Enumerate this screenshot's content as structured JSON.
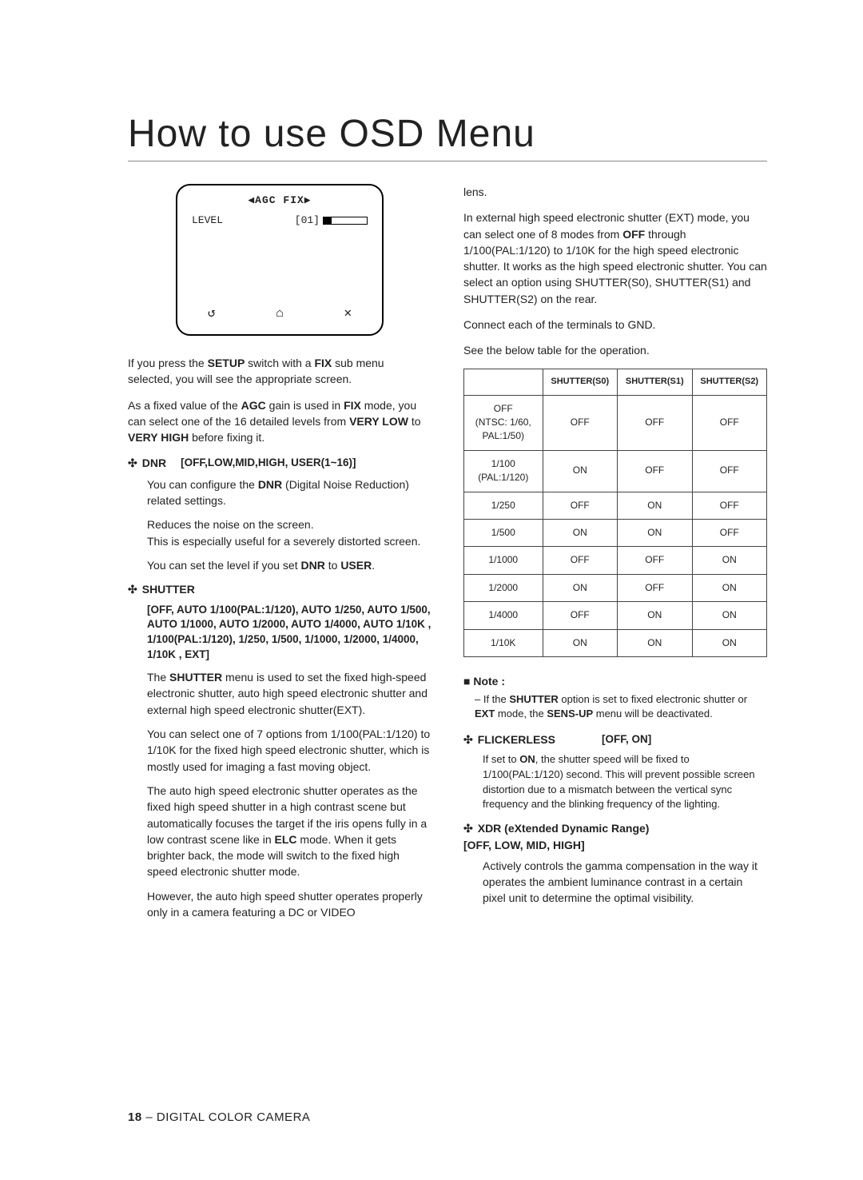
{
  "title": "How to use OSD Menu",
  "osd": {
    "header": "◀AGC FIX▶",
    "row_label": "LEVEL",
    "row_value": "[01]",
    "icon_back": "↺",
    "icon_home": "⌂",
    "icon_close": "✕"
  },
  "left": {
    "p1_a": "If you press the ",
    "p1_b": "SETUP",
    "p1_c": " switch with a ",
    "p1_d": "FIX",
    "p1_e": " sub menu selected, you will see the appropriate screen.",
    "p2_a": "As a fixed value of the ",
    "p2_b": "AGC",
    "p2_c": " gain is used in ",
    "p2_d": "FIX",
    "p2_e": " mode, you can select one of the 16 detailed levels from ",
    "p2_f": "VERY LOW",
    "p2_g": " to ",
    "p2_h": "VERY HIGH",
    "p2_i": " before fixing it.",
    "dnr_label": "DNR",
    "dnr_opts": "[OFF,LOW,MID,HIGH, USER(1~16)]",
    "dnr_p1_a": "You can configure the ",
    "dnr_p1_b": "DNR",
    "dnr_p1_c": " (Digital Noise Reduction) related settings.",
    "dnr_p2": "Reduces the noise on the screen.\nThis is especially useful for a severely distorted screen.",
    "dnr_p3_a": "You can set the level if you set ",
    "dnr_p3_b": "DNR",
    "dnr_p3_c": " to ",
    "dnr_p3_d": "USER",
    "dnr_p3_e": ".",
    "shutter_label": "SHUTTER",
    "shutter_opts": "[OFF, AUTO 1/100(PAL:1/120), AUTO 1/250, AUTO 1/500, AUTO 1/1000, AUTO 1/2000, AUTO 1/4000, AUTO 1/10K , 1/100(PAL:1/120), 1/250, 1/500, 1/1000, 1/2000, 1/4000, 1/10K , EXT]",
    "shutter_p1_a": "The ",
    "shutter_p1_b": "SHUTTER",
    "shutter_p1_c": " menu is used to set the fixed high-speed electronic shutter, auto high speed electronic shutter and external high speed electronic shutter(EXT).",
    "shutter_p2": "You can select one of 7 options from 1/100(PAL:1/120) to 1/10K for the fixed high speed electronic shutter, which is mostly used for imaging a fast moving object.",
    "shutter_p3_a": "The auto high speed electronic shutter operates as the fixed high speed shutter in a high contrast scene but automatically focuses the target if the iris opens fully in a low contrast scene like in ",
    "shutter_p3_b": "ELC",
    "shutter_p3_c": " mode. When it gets brighter back, the mode will switch to the fixed high speed electronic shutter mode.",
    "shutter_p4": "However, the auto high speed shutter operates properly only in a camera featuring a DC or VIDEO"
  },
  "right": {
    "cont1": "lens.",
    "cont2_a": "In external high speed electronic shutter (EXT) mode, you can select one of 8 modes from ",
    "cont2_b": "OFF",
    "cont2_c": " through 1/100(PAL:1/120) to 1/10K for the high speed electronic shutter. It works as the high speed electronic shutter. You can select an option using SHUTTER(S0), SHUTTER(S1) and SHUTTER(S2) on the rear.",
    "cont3": "Connect each of the terminals to GND.",
    "cont4": "See the below table for the operation.",
    "table": {
      "headers": [
        "",
        "SHUTTER(S0)",
        "SHUTTER(S1)",
        "SHUTTER(S2)"
      ],
      "rows": [
        [
          "OFF\n(NTSC: 1/60,\nPAL:1/50)",
          "OFF",
          "OFF",
          "OFF"
        ],
        [
          "1/100\n(PAL:1/120)",
          "ON",
          "OFF",
          "OFF"
        ],
        [
          "1/250",
          "OFF",
          "ON",
          "OFF"
        ],
        [
          "1/500",
          "ON",
          "ON",
          "OFF"
        ],
        [
          "1/1000",
          "OFF",
          "OFF",
          "ON"
        ],
        [
          "1/2000",
          "ON",
          "OFF",
          "ON"
        ],
        [
          "1/4000",
          "OFF",
          "ON",
          "ON"
        ],
        [
          "1/10K",
          "ON",
          "ON",
          "ON"
        ]
      ]
    },
    "note_label": "■ Note :",
    "note_body_a": "– If the ",
    "note_body_b": "SHUTTER",
    "note_body_c": " option is set to fixed electronic shutter or ",
    "note_body_d": "EXT",
    "note_body_e": " mode, the ",
    "note_body_f": "SENS-UP",
    "note_body_g": " menu will be deactivated.",
    "flicker_label": "FLICKERLESS",
    "flicker_opts": "[OFF, ON]",
    "flicker_p_a": "If set to ",
    "flicker_p_b": "ON",
    "flicker_p_c": ", the shutter speed will be fixed to 1/100(PAL:1/120) second. This will prevent possible screen distortion due to a mismatch between the vertical sync frequency and the blinking frequency of the lighting.",
    "xdr_label": "XDR (eXtended Dynamic Range)\n[OFF, LOW, MID, HIGH]",
    "xdr_p": "Actively controls the gamma compensation in the way it operates the ambient luminance contrast in a certain pixel unit to determine the optimal visibility."
  },
  "footer": {
    "page": "18",
    "sep": " – ",
    "label": "DIGITAL COLOR CAMERA"
  }
}
